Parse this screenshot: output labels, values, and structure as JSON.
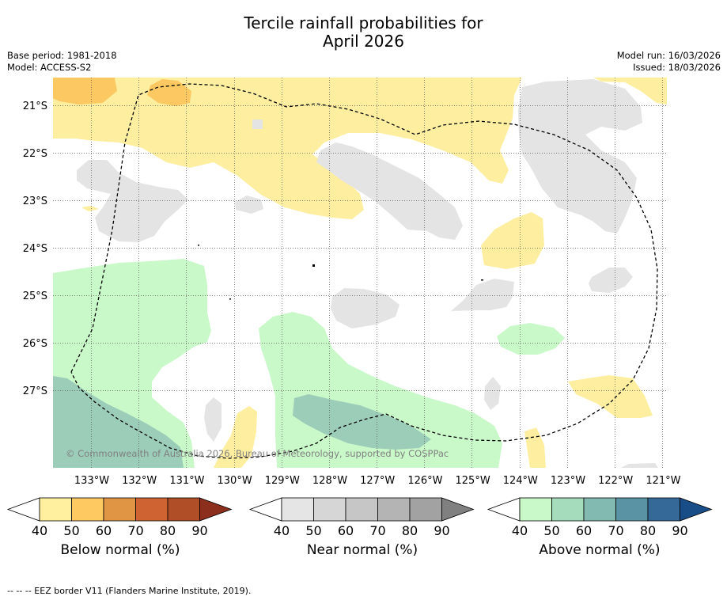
{
  "title": {
    "line1": "Tercile rainfall probabilities for",
    "line2": "April 2026"
  },
  "meta": {
    "base_period": "Base period: 1981-2018",
    "model": "Model: ACCESS-S2",
    "model_run": "Model run: 16/03/2026",
    "issued": "Issued: 18/03/2026"
  },
  "map": {
    "lat_labels": [
      "21°S",
      "22°S",
      "23°S",
      "24°S",
      "25°S",
      "26°S",
      "27°S"
    ],
    "lon_labels": [
      "133°W",
      "132°W",
      "131°W",
      "130°W",
      "129°W",
      "128°W",
      "127°W",
      "126°W",
      "125°W",
      "124°W",
      "123°W",
      "122°W",
      "121°W"
    ],
    "copyright": "© Commonwealth of Australia 2026, Bureau of Meteorology, supported by COSPPac",
    "colors": {
      "below": "#fdeea0",
      "below2": "#fcc862",
      "near": "#e4e4e4",
      "above": "#c9f8c9",
      "above2": "#9ccdb8",
      "border": "#000000"
    }
  },
  "colorbars": [
    {
      "label": "Below normal (%)",
      "ticks": [
        "40",
        "50",
        "60",
        "70",
        "80",
        "90"
      ],
      "colors": [
        "#fff0a0",
        "#fdc960",
        "#e09545",
        "#cf6432",
        "#b04e27",
        "#8c2f1c"
      ]
    },
    {
      "label": "Near normal (%)",
      "ticks": [
        "40",
        "50",
        "60",
        "70",
        "80",
        "90"
      ],
      "colors": [
        "#e5e5e5",
        "#d6d6d6",
        "#c6c6c6",
        "#b4b4b4",
        "#a2a2a2",
        "#808080"
      ]
    },
    {
      "label": "Above normal (%)",
      "ticks": [
        "40",
        "50",
        "60",
        "70",
        "80",
        "90"
      ],
      "colors": [
        "#c9f8c9",
        "#a5dcbc",
        "#82b9b0",
        "#5a93a3",
        "#356998",
        "#184d88"
      ]
    }
  ],
  "footnote": "--  --  -- EEZ border V11 (Flanders Marine Institute, 2019)."
}
